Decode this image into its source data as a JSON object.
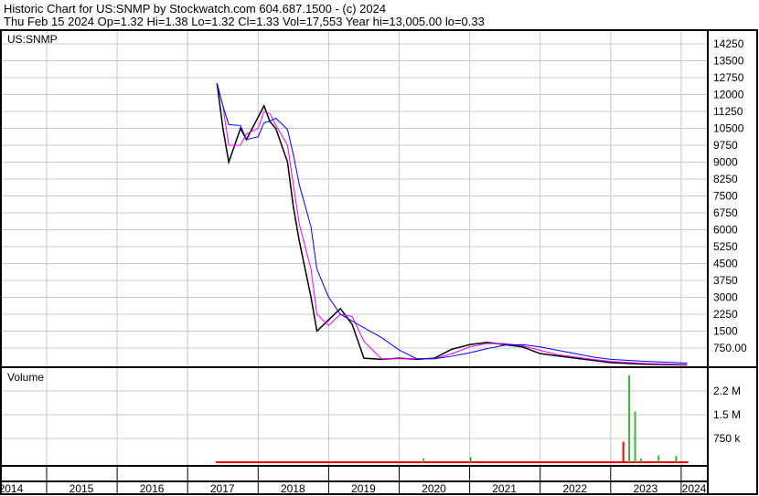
{
  "header": {
    "title": "Historic Chart for US:SNMP by Stockwatch.com 604.687.1500 - (c) 2024",
    "quote": "Thu Feb 15 2024  Op=1.32  Hi=1.38  Lo=1.32  Cl=1.33  Vol=17,553  Year hi=13,005.00  lo=0.33"
  },
  "chart_data": [
    {
      "type": "line",
      "title": "US:SNMP",
      "ylim": [
        0,
        14600
      ],
      "yticks": [
        "14250",
        "13500",
        "12750",
        "12000",
        "11250",
        "10500",
        "9750",
        "9000",
        "8250",
        "7500",
        "6750",
        "6000",
        "5250",
        "4500",
        "3750",
        "3000",
        "2250",
        "1500",
        "750.00"
      ],
      "ytick_values": [
        14250,
        13500,
        12750,
        12000,
        11250,
        10500,
        9750,
        9000,
        8250,
        7500,
        6750,
        6000,
        5250,
        4500,
        3750,
        3000,
        2250,
        1500,
        750
      ],
      "x": [
        "2017-06",
        "2017-07",
        "2017-08",
        "2017-10",
        "2017-11",
        "2018-01",
        "2018-02",
        "2018-03",
        "2018-04",
        "2018-06",
        "2018-07",
        "2018-08",
        "2018-10",
        "2018-11",
        "2019-01",
        "2019-03",
        "2019-05",
        "2019-07",
        "2019-10",
        "2020-01",
        "2020-04",
        "2020-07",
        "2020-10",
        "2021-01",
        "2021-04",
        "2021-07",
        "2021-10",
        "2022-01",
        "2022-04",
        "2022-07",
        "2022-10",
        "2023-01",
        "2023-07",
        "2024-02"
      ],
      "close": [
        12500,
        10500,
        9000,
        10500,
        10000,
        11000,
        11500,
        10800,
        10500,
        9000,
        7000,
        5500,
        3000,
        1500,
        2000,
        2500,
        1800,
        300,
        250,
        300,
        250,
        300,
        700,
        900,
        1000,
        900,
        800,
        500,
        400,
        300,
        200,
        100,
        30,
        1.33
      ],
      "series_colors": {
        "price": "#000000",
        "ma_short": "#ff00ff",
        "ma_long": "#0000ff"
      }
    },
    {
      "type": "bar",
      "title": "Volume",
      "ylim": [
        0,
        3000000
      ],
      "yticks": [
        "2.2 M",
        "1.5 M",
        "750 k"
      ],
      "ytick_values": [
        2250000,
        1500000,
        750000
      ],
      "x": [
        "2020-05",
        "2021-01",
        "2023-03",
        "2023-04",
        "2023-05",
        "2023-06",
        "2023-09",
        "2023-12"
      ],
      "values": [
        120000,
        160000,
        650000,
        2750000,
        1600000,
        120000,
        220000,
        200000
      ],
      "colors": {
        "up": "#3cb43c",
        "down": "#ff0000"
      }
    }
  ],
  "xaxis": {
    "labels": [
      "2014",
      "2015",
      "2016",
      "2017",
      "2018",
      "2019",
      "2020",
      "2021",
      "2022",
      "2023",
      "2024"
    ]
  }
}
